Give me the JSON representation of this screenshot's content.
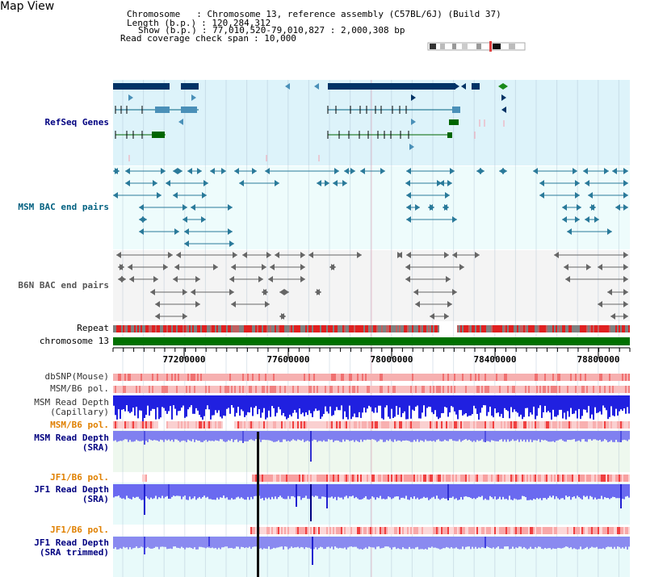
{
  "title": "Map View",
  "info": {
    "chromosome_key": "Chromosome",
    "chromosome_val": ": Chromosome 13, reference assembly (C57BL/6J) (Build 37)",
    "length_key": "Length (b.p.)",
    "length_val": ": 120,284,312",
    "show_key": "Show (b.p.)",
    "show_val": ": 77,010,520-79,010,827 : 2,000,308 bp",
    "span_key": "Read coverage check span",
    "span_val": ": 10,000"
  },
  "tracks": {
    "refseq": "RefSeq Genes",
    "msm_bac": "MSM BAC end pairs",
    "b6n_bac": "B6N BAC end pairs",
    "repeat": "Repeat",
    "chromosome": "chromosome 13",
    "dbsnp": "dbSNP(Mouse)",
    "msm_b6_pol": "MSM/B6 pol.",
    "msm_depth_cap_1": "MSM Read Depth",
    "msm_depth_cap_2": "(Capillary)",
    "msm_b6_pol2": "MSM/B6 pol.",
    "msm_depth_sra_1": "MSM Read Depth",
    "msm_depth_sra_2": "(SRA)",
    "jf1_b6_pol": "JF1/B6 pol.",
    "jf1_depth_1": "JF1 Read Depth",
    "jf1_depth_2": "(SRA)",
    "jf1_b6_pol2": "JF1/B6 pol.",
    "jf1_trim_1": "JF1 Read Depth",
    "jf1_trim_2": "(SRA trimmed)"
  },
  "axis_ticks": [
    "77200000",
    "77600000",
    "78000000",
    "78400000",
    "78800000"
  ],
  "colors": {
    "refseq_bg": "#ddf3fa",
    "bac_bg": "#eefcfc",
    "b6n_bg": "#f4f4f4",
    "navy": "#003366",
    "gene_blue": "#4a90b8",
    "gene_green": "#006600",
    "chrom_green": "#007000",
    "depth_blue": "#2020e0",
    "depth_light": "#8080f0",
    "pol_red": "#f04040"
  }
}
